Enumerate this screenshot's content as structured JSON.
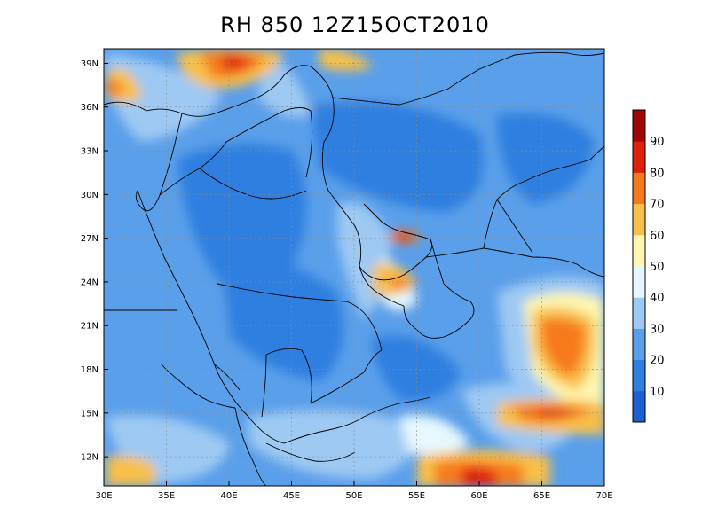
{
  "title": "RH  850  12Z15OCT2010",
  "map": {
    "lon_range": [
      30,
      70
    ],
    "lat_range": [
      10,
      40
    ],
    "lon_labels": [
      "30E",
      "35E",
      "40E",
      "45E",
      "50E",
      "55E",
      "60E",
      "65E",
      "70E"
    ],
    "lat_labels": [
      "12N",
      "15N",
      "18N",
      "21N",
      "24N",
      "27N",
      "30N",
      "33N",
      "36N",
      "39N"
    ],
    "grid": true
  },
  "colorbar": {
    "labels": [
      "10",
      "20",
      "30",
      "40",
      "50",
      "60",
      "70",
      "80",
      "90"
    ],
    "colors": [
      "#1c5fd0",
      "#2f7fe0",
      "#5a9fea",
      "#9ec9f3",
      "#e6f7ff",
      "#fff7b0",
      "#f8c04a",
      "#f77a1a",
      "#e0210a",
      "#a10505"
    ]
  }
}
